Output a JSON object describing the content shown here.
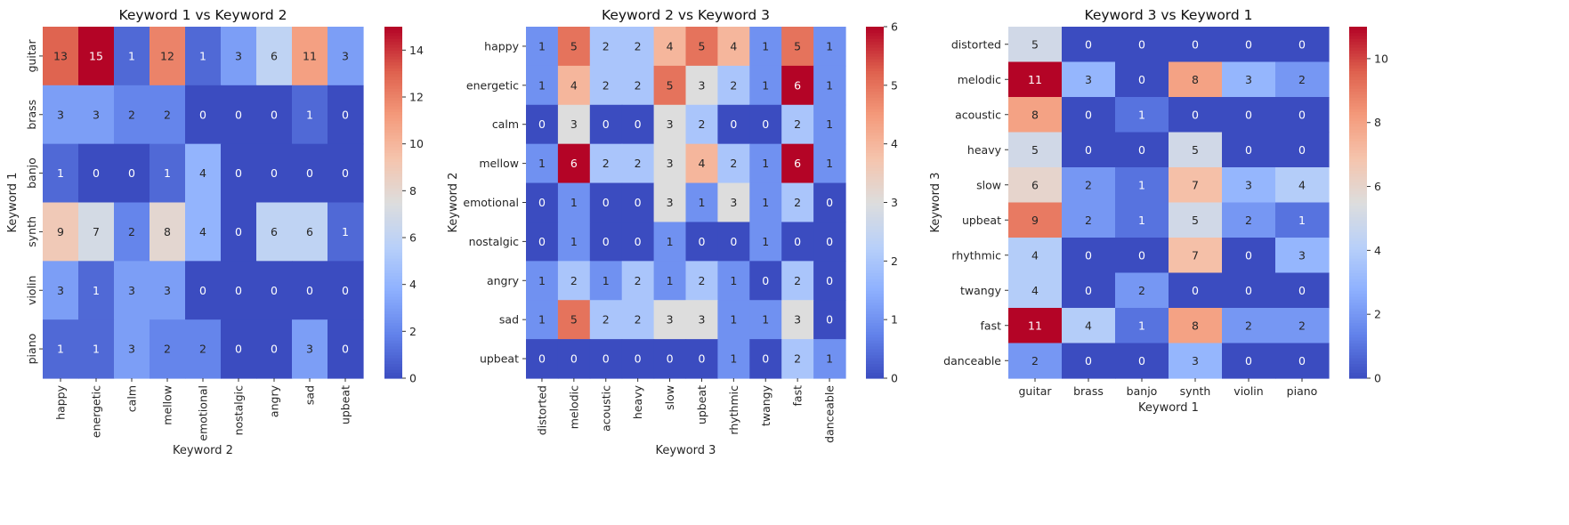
{
  "chart_data": [
    {
      "type": "heatmap",
      "title": "Keyword 1 vs Keyword 2",
      "xlabel": "Keyword 2",
      "ylabel": "Keyword 1",
      "x_categories": [
        "happy",
        "energetic",
        "calm",
        "mellow",
        "emotional",
        "nostalgic",
        "angry",
        "sad",
        "upbeat"
      ],
      "y_categories": [
        "guitar",
        "brass",
        "banjo",
        "synth",
        "violin",
        "piano"
      ],
      "values": [
        [
          13,
          15,
          1,
          12,
          1,
          3,
          6,
          11,
          3
        ],
        [
          3,
          3,
          2,
          2,
          0,
          0,
          0,
          1,
          0
        ],
        [
          1,
          0,
          0,
          1,
          4,
          0,
          0,
          0,
          0
        ],
        [
          9,
          7,
          2,
          8,
          4,
          0,
          6,
          6,
          1
        ],
        [
          3,
          1,
          3,
          3,
          0,
          0,
          0,
          0,
          0
        ],
        [
          1,
          1,
          3,
          2,
          2,
          0,
          0,
          3,
          0
        ]
      ],
      "colormap": "coolwarm",
      "vmin": 0,
      "vmax": 15,
      "colorbar_ticks": [
        0,
        2,
        4,
        6,
        8,
        10,
        12,
        14
      ],
      "x_tick_rotation": "vertical",
      "y_tick_rotation": "vertical"
    },
    {
      "type": "heatmap",
      "title": "Keyword 2 vs Keyword 3",
      "xlabel": "Keyword 3",
      "ylabel": "Keyword 2",
      "x_categories": [
        "distorted",
        "melodic",
        "acoustic",
        "heavy",
        "slow",
        "upbeat",
        "rhythmic",
        "twangy",
        "fast",
        "danceable"
      ],
      "y_categories": [
        "happy",
        "energetic",
        "calm",
        "mellow",
        "emotional",
        "nostalgic",
        "angry",
        "sad",
        "upbeat"
      ],
      "values": [
        [
          1,
          5,
          2,
          2,
          4,
          5,
          4,
          1,
          5,
          1
        ],
        [
          1,
          4,
          2,
          2,
          5,
          3,
          2,
          1,
          6,
          1
        ],
        [
          0,
          3,
          0,
          0,
          3,
          2,
          0,
          0,
          2,
          1
        ],
        [
          1,
          6,
          2,
          2,
          3,
          4,
          2,
          1,
          6,
          1
        ],
        [
          0,
          1,
          0,
          0,
          3,
          1,
          3,
          1,
          2,
          0
        ],
        [
          0,
          1,
          0,
          0,
          1,
          0,
          0,
          1,
          0,
          0
        ],
        [
          1,
          2,
          1,
          2,
          1,
          2,
          1,
          0,
          2,
          0
        ],
        [
          1,
          5,
          2,
          2,
          3,
          3,
          1,
          1,
          3,
          0
        ],
        [
          0,
          0,
          0,
          0,
          0,
          0,
          1,
          0,
          2,
          1
        ]
      ],
      "colormap": "coolwarm",
      "vmin": 0,
      "vmax": 6,
      "colorbar_ticks": [
        0,
        1,
        2,
        3,
        4,
        5,
        6
      ],
      "x_tick_rotation": "vertical",
      "y_tick_rotation": "horizontal"
    },
    {
      "type": "heatmap",
      "title": "Keyword 3 vs Keyword 1",
      "xlabel": "Keyword 1",
      "ylabel": "Keyword 3",
      "x_categories": [
        "guitar",
        "brass",
        "banjo",
        "synth",
        "violin",
        "piano"
      ],
      "y_categories": [
        "distorted",
        "melodic",
        "acoustic",
        "heavy",
        "slow",
        "upbeat",
        "rhythmic",
        "twangy",
        "fast",
        "danceable"
      ],
      "values": [
        [
          5,
          0,
          0,
          0,
          0,
          0
        ],
        [
          11,
          3,
          0,
          8,
          3,
          2
        ],
        [
          8,
          0,
          1,
          0,
          0,
          0
        ],
        [
          5,
          0,
          0,
          5,
          0,
          0
        ],
        [
          6,
          2,
          1,
          7,
          3,
          4
        ],
        [
          9,
          2,
          1,
          5,
          2,
          1
        ],
        [
          4,
          0,
          0,
          7,
          0,
          3
        ],
        [
          4,
          0,
          2,
          0,
          0,
          0
        ],
        [
          11,
          4,
          1,
          8,
          2,
          2
        ],
        [
          2,
          0,
          0,
          3,
          0,
          0
        ]
      ],
      "colormap": "coolwarm",
      "vmin": 0,
      "vmax": 11,
      "colorbar_ticks": [
        0,
        2,
        4,
        6,
        8,
        10
      ],
      "x_tick_rotation": "horizontal",
      "y_tick_rotation": "horizontal"
    }
  ]
}
